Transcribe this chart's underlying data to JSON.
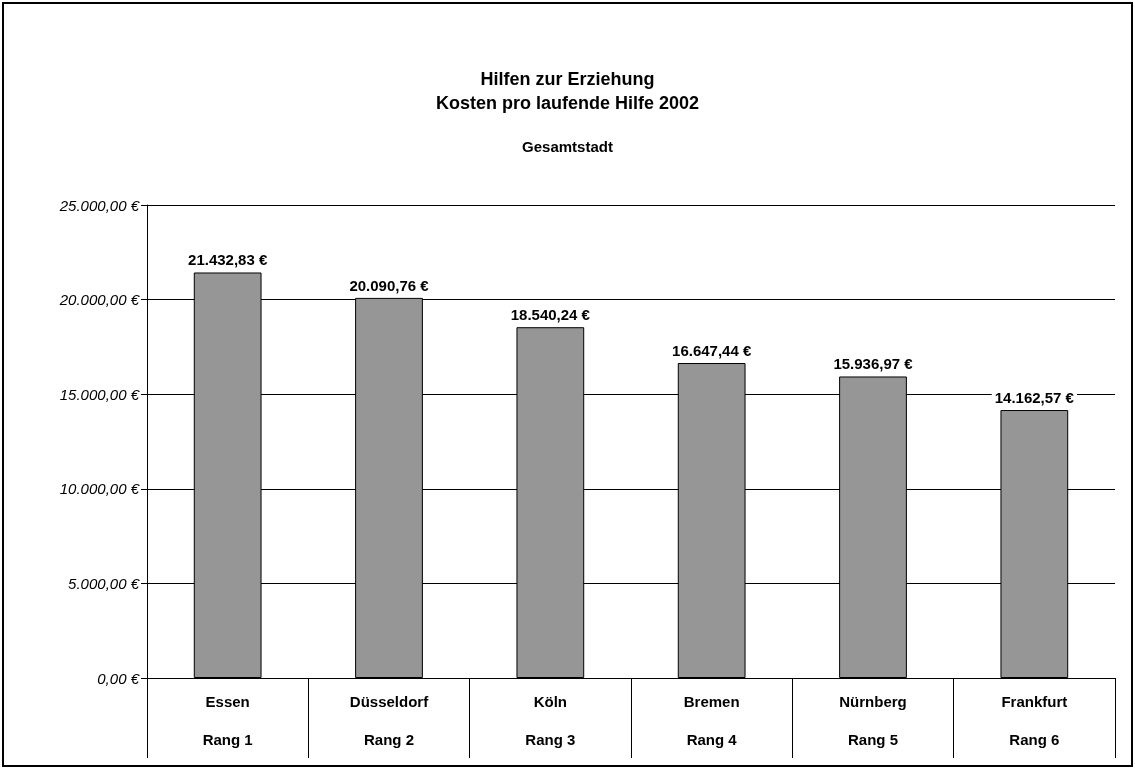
{
  "chart_data": {
    "type": "bar",
    "title": "Hilfen zur Erziehung\nKosten pro laufende Hilfe 2002",
    "subtitle": "Gesamtstadt",
    "categories": [
      "Essen\n\nRang 1",
      "Düsseldorf\n\nRang 2",
      "Köln\n\nRang 3",
      "Bremen\n\nRang 4",
      "Nürnberg\n\nRang 5",
      "Frankfurt\n\nRang 6"
    ],
    "values": [
      21432.83,
      20090.76,
      18540.24,
      16647.44,
      15936.97,
      14162.57
    ],
    "value_labels": [
      "21.432,83 €",
      "20.090,76 €",
      "18.540,24 €",
      "16.647,44 €",
      "15.936,97 €",
      "14.162,57 €"
    ],
    "color": "#969696",
    "ylim": [
      0,
      25000
    ],
    "yticks": [
      {
        "value": 0,
        "label": "0,00 €"
      },
      {
        "value": 5000,
        "label": "5.000,00 €"
      },
      {
        "value": 10000,
        "label": "10.000,00 €"
      },
      {
        "value": 15000,
        "label": "15.000,00 €"
      },
      {
        "value": 20000,
        "label": "20.000,00 €"
      },
      {
        "value": 25000,
        "label": "25.000,00 €"
      }
    ],
    "grid": "y"
  }
}
